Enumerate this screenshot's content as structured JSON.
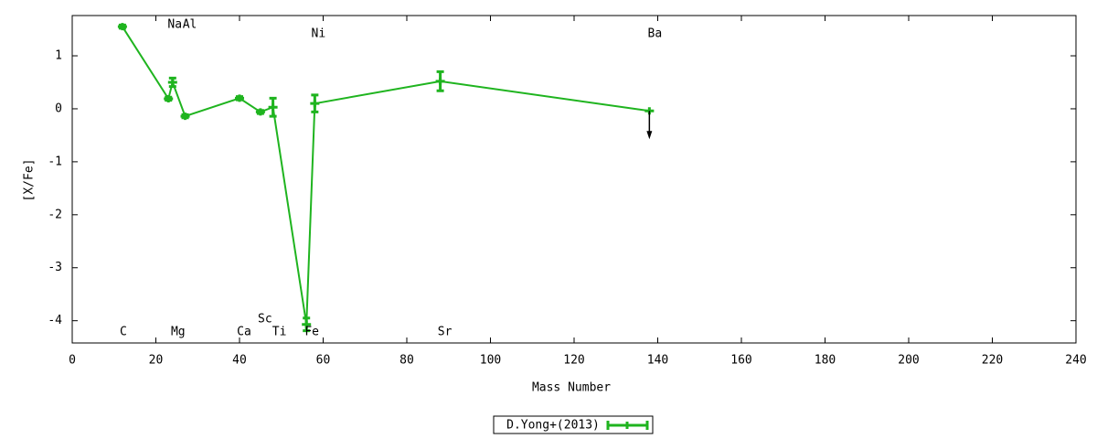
{
  "chart_data": {
    "type": "line",
    "xlabel": "Mass Number",
    "ylabel": "[X/Fe]",
    "xlim": [
      0,
      240
    ],
    "xticks": [
      0,
      20,
      40,
      60,
      80,
      100,
      120,
      140,
      160,
      180,
      200,
      220,
      240
    ],
    "ylim": [
      -4.42,
      1.76
    ],
    "yticks": [
      -4,
      -3,
      -2,
      -1,
      0,
      1
    ],
    "series": [
      {
        "name": "D.Yong+(2013)",
        "color": "#1fb41f",
        "x": [
          12,
          23,
          24,
          27,
          40,
          45,
          48,
          56,
          58,
          88,
          138
        ],
        "values": [
          1.55,
          0.19,
          0.5,
          -0.14,
          0.2,
          -0.06,
          0.03,
          -4.07,
          0.1,
          0.52,
          -0.04
        ],
        "errors": [
          0.03,
          0.03,
          0.08,
          0.03,
          0.03,
          0.03,
          0.17,
          0.12,
          0.16,
          0.18,
          null
        ],
        "upper_limit": [
          false,
          false,
          false,
          false,
          false,
          false,
          false,
          false,
          false,
          false,
          true
        ],
        "point_labels": [
          "C",
          "Na",
          "Mg",
          "Al",
          "Ca",
          "Sc",
          "Ti",
          "Fe",
          "Ni",
          "Sr",
          "Ba"
        ]
      }
    ]
  }
}
